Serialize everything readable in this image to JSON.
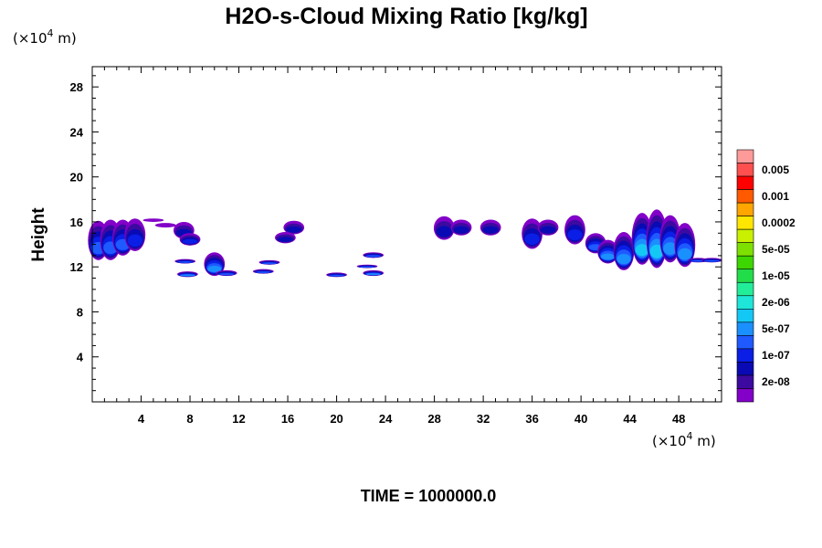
{
  "chart_data": {
    "type": "heatmap",
    "title": "H2O-s-Cloud Mixing Ratio [kg/kg]",
    "xlabel": "",
    "ylabel": "Height",
    "x_unit": "(×10⁴ m)",
    "y_unit": "(×10⁴ m)",
    "x_unit_base": "(×10",
    "x_unit_exp": "4",
    "x_unit_tail": " m)",
    "xlim": [
      0,
      51.5
    ],
    "ylim": [
      0,
      29.8
    ],
    "xticks": [
      4,
      8,
      12,
      16,
      20,
      24,
      28,
      32,
      36,
      40,
      44,
      48
    ],
    "yticks": [
      4,
      8,
      12,
      16,
      20,
      24,
      28
    ],
    "grid": false,
    "time_label": "TIME = 1000000.0",
    "colorbar": {
      "labels": [
        "0.005",
        "0.001",
        "0.0002",
        "5e-05",
        "1e-05",
        "2e-06",
        "5e-07",
        "1e-07",
        "2e-08"
      ],
      "colors": [
        "#ff9a9a",
        "#ff4f4f",
        "#ff0000",
        "#ff5a00",
        "#ffa500",
        "#ffe600",
        "#c8f000",
        "#7ee000",
        "#3ed600",
        "#22dd4a",
        "#22ee9a",
        "#1ee6d8",
        "#14c8f5",
        "#1a90ff",
        "#1e5aff",
        "#0a1ee6",
        "#0a0ab4",
        "#3c0aa0",
        "#8200c8"
      ]
    },
    "cloud_blobs": [
      {
        "x": 0.5,
        "ytop": 16.1,
        "ybot": 12.6,
        "level": 4
      },
      {
        "x": 1.5,
        "ytop": 16.2,
        "ybot": 12.6,
        "level": 4
      },
      {
        "x": 2.5,
        "ytop": 16.2,
        "ybot": 13.0,
        "level": 4
      },
      {
        "x": 3.5,
        "ytop": 16.3,
        "ybot": 13.4,
        "level": 3
      },
      {
        "x": 5.0,
        "ytop": 16.3,
        "ybot": 16.0,
        "level": 0
      },
      {
        "x": 6.0,
        "ytop": 15.9,
        "ybot": 15.5,
        "level": 0
      },
      {
        "x": 7.5,
        "ytop": 16.0,
        "ybot": 14.5,
        "level": 2
      },
      {
        "x": 8.0,
        "ytop": 15.0,
        "ybot": 13.9,
        "level": 3
      },
      {
        "x": 7.8,
        "ytop": 11.6,
        "ybot": 11.1,
        "level": 5
      },
      {
        "x": 7.6,
        "ytop": 12.7,
        "ybot": 12.3,
        "level": 4
      },
      {
        "x": 10.0,
        "ytop": 13.3,
        "ybot": 11.2,
        "level": 5
      },
      {
        "x": 11.0,
        "ytop": 11.7,
        "ybot": 11.2,
        "level": 4
      },
      {
        "x": 14.0,
        "ytop": 11.8,
        "ybot": 11.4,
        "level": 4
      },
      {
        "x": 14.5,
        "ytop": 12.6,
        "ybot": 12.2,
        "level": 4
      },
      {
        "x": 16.5,
        "ytop": 16.1,
        "ybot": 14.9,
        "level": 2
      },
      {
        "x": 15.8,
        "ytop": 15.1,
        "ybot": 14.1,
        "level": 2
      },
      {
        "x": 20.0,
        "ytop": 11.5,
        "ybot": 11.1,
        "level": 4
      },
      {
        "x": 22.5,
        "ytop": 12.2,
        "ybot": 11.9,
        "level": 4
      },
      {
        "x": 23.0,
        "ytop": 13.3,
        "ybot": 12.8,
        "level": 4
      },
      {
        "x": 23.0,
        "ytop": 11.7,
        "ybot": 11.2,
        "level": 5
      },
      {
        "x": 28.8,
        "ytop": 16.5,
        "ybot": 14.4,
        "level": 2
      },
      {
        "x": 30.2,
        "ytop": 16.2,
        "ybot": 14.8,
        "level": 2
      },
      {
        "x": 32.6,
        "ytop": 16.2,
        "ybot": 14.8,
        "level": 2
      },
      {
        "x": 36.0,
        "ytop": 16.3,
        "ybot": 13.6,
        "level": 3
      },
      {
        "x": 37.3,
        "ytop": 16.2,
        "ybot": 14.8,
        "level": 2
      },
      {
        "x": 39.5,
        "ytop": 16.6,
        "ybot": 14.0,
        "level": 3
      },
      {
        "x": 41.2,
        "ytop": 15.0,
        "ybot": 13.2,
        "level": 4
      },
      {
        "x": 42.2,
        "ytop": 14.4,
        "ybot": 12.3,
        "level": 5
      },
      {
        "x": 43.5,
        "ytop": 15.1,
        "ybot": 11.7,
        "level": 5
      },
      {
        "x": 45.0,
        "ytop": 16.8,
        "ybot": 12.2,
        "level": 6
      },
      {
        "x": 46.2,
        "ytop": 17.1,
        "ybot": 11.9,
        "level": 6
      },
      {
        "x": 47.3,
        "ytop": 16.6,
        "ybot": 12.4,
        "level": 5
      },
      {
        "x": 48.5,
        "ytop": 15.9,
        "ybot": 12.0,
        "level": 5
      },
      {
        "x": 49.6,
        "ytop": 12.8,
        "ybot": 12.4,
        "level": 4
      },
      {
        "x": 50.7,
        "ytop": 12.8,
        "ybot": 12.4,
        "level": 4
      }
    ]
  }
}
